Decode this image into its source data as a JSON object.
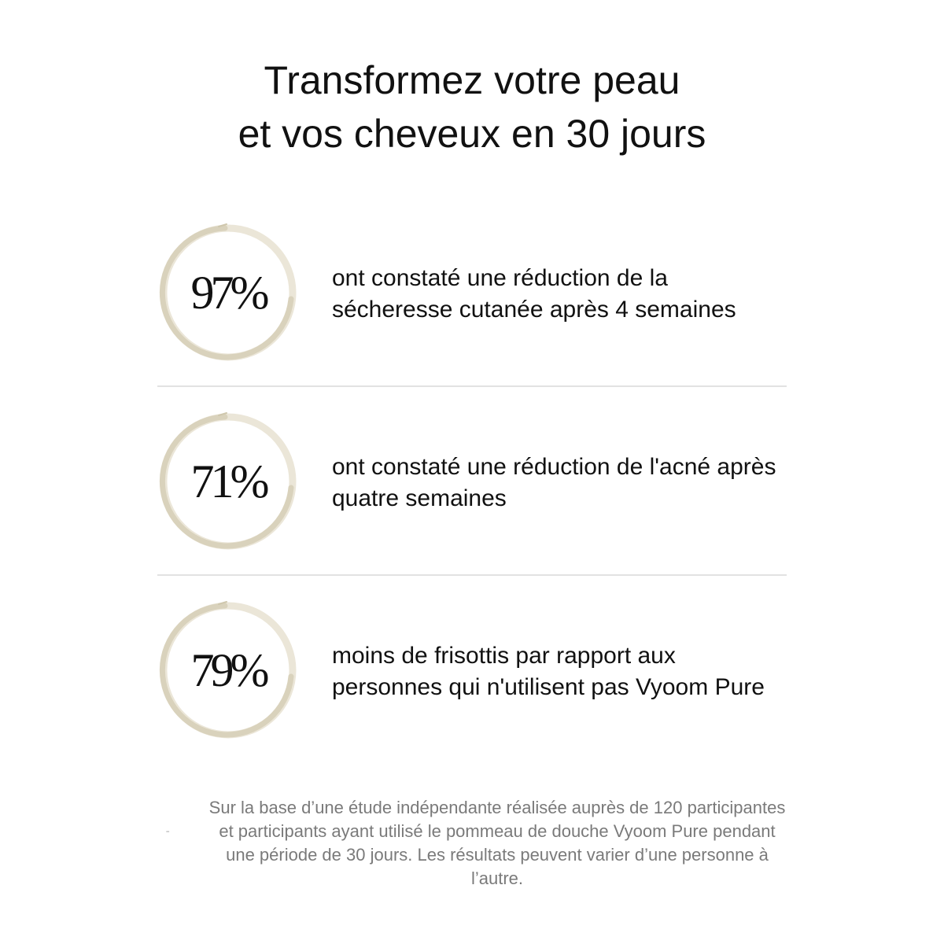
{
  "headline": {
    "line1": "Transformez votre peau",
    "line2": "et vos cheveux en 30 jours"
  },
  "stats": [
    {
      "percent": "97%",
      "text": "ont constaté une réduction de la sécheresse cutanée après 4 semaines"
    },
    {
      "percent": "71%",
      "text": "ont constaté une réduction de l'acné après quatre semaines"
    },
    {
      "percent": "79%",
      "text": "moins de frisottis par rapport aux personnes qui n'utilisent pas Vyoom Pure"
    }
  ],
  "footnote": "Sur la base d’une étude indépendante réalisée auprès de 120 participantes et participants ayant utilisé le pommeau de douche Vyoom Pure pendant une période de 30 jours. Les résultats peuvent varier d’une personne à l’autre.",
  "colors": {
    "ring": "#d9d2bc",
    "ring_light": "#ebe6d8",
    "text": "#111111",
    "footnote": "#7a7a7a",
    "divider": "#e2e2e2"
  }
}
